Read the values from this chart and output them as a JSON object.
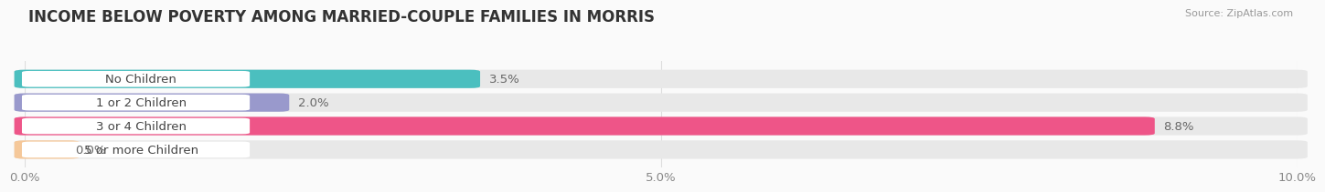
{
  "title": "INCOME BELOW POVERTY AMONG MARRIED-COUPLE FAMILIES IN MORRIS",
  "source": "Source: ZipAtlas.com",
  "categories": [
    "No Children",
    "1 or 2 Children",
    "3 or 4 Children",
    "5 or more Children"
  ],
  "values": [
    3.5,
    2.0,
    8.8,
    0.0
  ],
  "bar_colors": [
    "#4BBFBF",
    "#9999CC",
    "#EE5588",
    "#F5C89A"
  ],
  "bar_bg_color": "#E8E8E8",
  "xlim": [
    0,
    10.0
  ],
  "xticks": [
    0.0,
    5.0,
    10.0
  ],
  "xtick_labels": [
    "0.0%",
    "5.0%",
    "10.0%"
  ],
  "label_fontsize": 9.5,
  "title_fontsize": 12,
  "value_fontsize": 9.5,
  "bar_height": 0.62,
  "background_color": "#FAFAFA",
  "label_bg_color": "#FFFFFF",
  "label_text_color": "#444444",
  "value_text_color": "#666666",
  "grid_color": "#DDDDDD"
}
